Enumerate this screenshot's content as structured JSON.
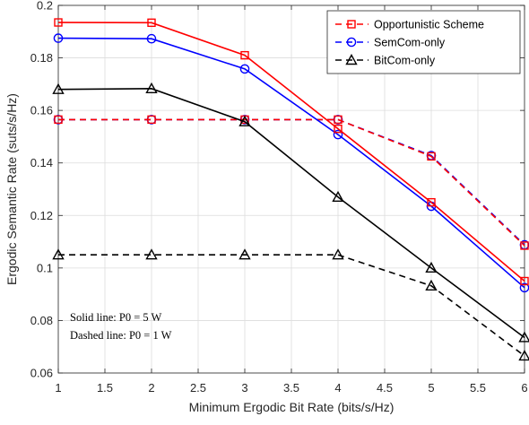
{
  "chart_data": {
    "type": "line",
    "xlabel": "Minimum Ergodic Bit Rate (bits/s/Hz)",
    "ylabel": "Ergodic Semantic Rate (suts/s/Hz)",
    "xlim": [
      1,
      6
    ],
    "ylim": [
      0.06,
      0.2
    ],
    "xticks": [
      1,
      1.5,
      2,
      2.5,
      3,
      3.5,
      4,
      4.5,
      5,
      5.5,
      6
    ],
    "xtick_labels": [
      "1",
      "1.5",
      "2",
      "2.5",
      "3",
      "3.5",
      "4",
      "4.5",
      "5",
      "5.5",
      "6"
    ],
    "yticks": [
      0.06,
      0.08,
      0.1,
      0.12,
      0.14,
      0.16,
      0.18,
      0.2
    ],
    "ytick_labels": [
      "0.06",
      "0.08",
      "0.1",
      "0.12",
      "0.14",
      "0.16",
      "0.18",
      "0.2"
    ],
    "grid": true,
    "legend_position": "top-right",
    "legend": [
      {
        "label": "Opportunistic Scheme",
        "color": "#ff0000",
        "marker": "square"
      },
      {
        "label": "SemCom-only",
        "color": "#0000ff",
        "marker": "circle"
      },
      {
        "label": "BitCom-only",
        "color": "#000000",
        "marker": "triangle"
      }
    ],
    "annotations": [
      {
        "text": "Solid line: P0 = 5 W"
      },
      {
        "text": "Dashed line: P0 = 1 W"
      }
    ],
    "x": [
      1,
      2,
      3,
      4,
      5,
      6
    ],
    "series": [
      {
        "name": "Opportunistic Scheme",
        "group": "P0 = 5 W",
        "line": "solid",
        "color": "#ff0000",
        "marker": "square",
        "values": [
          0.1935,
          0.1934,
          0.181,
          0.153,
          0.125,
          0.095
        ]
      },
      {
        "name": "SemCom-only",
        "group": "P0 = 5 W",
        "line": "solid",
        "color": "#0000ff",
        "marker": "circle",
        "values": [
          0.1875,
          0.1873,
          0.1758,
          0.1508,
          0.1235,
          0.0925
        ]
      },
      {
        "name": "BitCom-only",
        "group": "P0 = 5 W",
        "line": "solid",
        "color": "#000000",
        "marker": "triangle",
        "values": [
          0.168,
          0.1683,
          0.1557,
          0.127,
          0.1,
          0.0735
        ]
      },
      {
        "name": "Opportunistic Scheme",
        "group": "P0 = 1 W",
        "line": "dashed",
        "color": "#ff0000",
        "marker": "square",
        "values": [
          0.1565,
          0.1565,
          0.1565,
          0.1565,
          0.1425,
          0.1085
        ]
      },
      {
        "name": "SemCom-only",
        "group": "P0 = 1 W",
        "line": "dashed",
        "color": "#0000ff",
        "marker": "circle",
        "values": [
          0.1565,
          0.1565,
          0.1565,
          0.1565,
          0.1428,
          0.1088
        ]
      },
      {
        "name": "BitCom-only",
        "group": "P0 = 1 W",
        "line": "dashed",
        "color": "#000000",
        "marker": "triangle",
        "values": [
          0.105,
          0.105,
          0.105,
          0.105,
          0.0932,
          0.0665
        ]
      }
    ]
  }
}
